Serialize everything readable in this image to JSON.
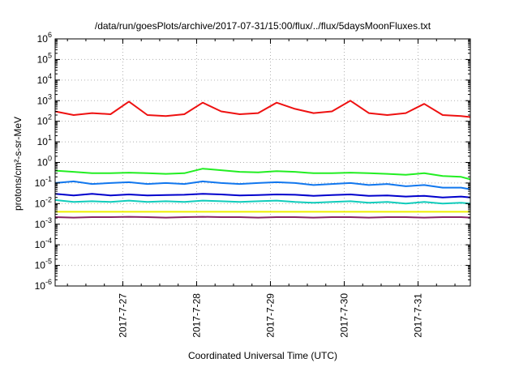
{
  "chart_data": {
    "type": "line",
    "title": "/data/run/goesPlots/archive/2017-07-31/15:00/flux/../flux/5daysMoonFluxes.txt",
    "xlabel": "Coordinated Universal Time (UTC)",
    "ylabel": "protons/cm²-s-sr-MeV",
    "yscale": "log",
    "ylim": [
      1e-06,
      1000000.0
    ],
    "xlim": [
      "2017-07-26 02:00",
      "2017-07-31 17:00"
    ],
    "grid": true,
    "x_ticks": [
      "2017-7-27",
      "2017-7-28",
      "2017-7-29",
      "2017-7-30",
      "2017-7-31"
    ],
    "y_ticks": [
      {
        "base": "10",
        "exp": "-6"
      },
      {
        "base": "10",
        "exp": "-5"
      },
      {
        "base": "10",
        "exp": "-4"
      },
      {
        "base": "10",
        "exp": "-3"
      },
      {
        "base": "10",
        "exp": "-2"
      },
      {
        "base": "10",
        "exp": "-1"
      },
      {
        "base": "10",
        "exp": "0"
      },
      {
        "base": "10",
        "exp": "1"
      },
      {
        "base": "10",
        "exp": "2"
      },
      {
        "base": "10",
        "exp": "3"
      },
      {
        "base": "10",
        "exp": "4"
      },
      {
        "base": "10",
        "exp": "5"
      },
      {
        "base": "10",
        "exp": "6"
      }
    ],
    "x": [
      "2017-07-26 02:00",
      "2017-07-26 08:00",
      "2017-07-26 14:00",
      "2017-07-26 20:00",
      "2017-07-27 02:00",
      "2017-07-27 08:00",
      "2017-07-27 14:00",
      "2017-07-27 20:00",
      "2017-07-28 02:00",
      "2017-07-28 08:00",
      "2017-07-28 14:00",
      "2017-07-28 20:00",
      "2017-07-29 02:00",
      "2017-07-29 08:00",
      "2017-07-29 14:00",
      "2017-07-29 20:00",
      "2017-07-30 02:00",
      "2017-07-30 08:00",
      "2017-07-30 14:00",
      "2017-07-30 20:00",
      "2017-07-31 02:00",
      "2017-07-31 08:00",
      "2017-07-31 14:00",
      "2017-07-31 17:00"
    ],
    "series": [
      {
        "color": "#ee1111",
        "values": [
          300,
          200,
          250,
          220,
          900,
          200,
          180,
          220,
          800,
          300,
          220,
          250,
          800,
          400,
          250,
          300,
          1000,
          250,
          200,
          250,
          700,
          200,
          180,
          160
        ]
      },
      {
        "color": "#22ee22",
        "values": [
          0.4,
          0.35,
          0.3,
          0.3,
          0.32,
          0.3,
          0.28,
          0.3,
          0.5,
          0.42,
          0.35,
          0.33,
          0.38,
          0.35,
          0.3,
          0.3,
          0.32,
          0.3,
          0.28,
          0.25,
          0.3,
          0.22,
          0.2,
          0.15
        ]
      },
      {
        "color": "#1177ee",
        "values": [
          0.1,
          0.12,
          0.09,
          0.1,
          0.11,
          0.09,
          0.1,
          0.09,
          0.12,
          0.1,
          0.09,
          0.1,
          0.11,
          0.1,
          0.08,
          0.09,
          0.1,
          0.08,
          0.09,
          0.07,
          0.08,
          0.06,
          0.06,
          0.05
        ]
      },
      {
        "color": "#0000cc",
        "values": [
          0.03,
          0.025,
          0.03,
          0.025,
          0.028,
          0.025,
          0.026,
          0.027,
          0.03,
          0.028,
          0.025,
          0.026,
          0.028,
          0.027,
          0.024,
          0.026,
          0.028,
          0.024,
          0.025,
          0.022,
          0.024,
          0.02,
          0.022,
          0.02
        ]
      },
      {
        "color": "#11ccbb",
        "values": [
          0.015,
          0.012,
          0.013,
          0.012,
          0.014,
          0.012,
          0.013,
          0.012,
          0.014,
          0.013,
          0.012,
          0.013,
          0.014,
          0.012,
          0.011,
          0.012,
          0.013,
          0.011,
          0.012,
          0.01,
          0.012,
          0.01,
          0.011,
          0.01
        ]
      },
      {
        "color": "#eeee00",
        "values": [
          0.004,
          0.004,
          0.004,
          0.004,
          0.004,
          0.004,
          0.004,
          0.004,
          0.004,
          0.004,
          0.004,
          0.004,
          0.004,
          0.004,
          0.004,
          0.004,
          0.004,
          0.004,
          0.004,
          0.004,
          0.004,
          0.004,
          0.004,
          0.004
        ]
      },
      {
        "color": "#882266",
        "values": [
          0.0022,
          0.0021,
          0.0022,
          0.0022,
          0.0023,
          0.0022,
          0.0021,
          0.0022,
          0.0023,
          0.0022,
          0.0022,
          0.0021,
          0.0022,
          0.0022,
          0.0021,
          0.0022,
          0.0022,
          0.0021,
          0.0022,
          0.0022,
          0.0021,
          0.0022,
          0.0022,
          0.0021
        ]
      }
    ]
  }
}
